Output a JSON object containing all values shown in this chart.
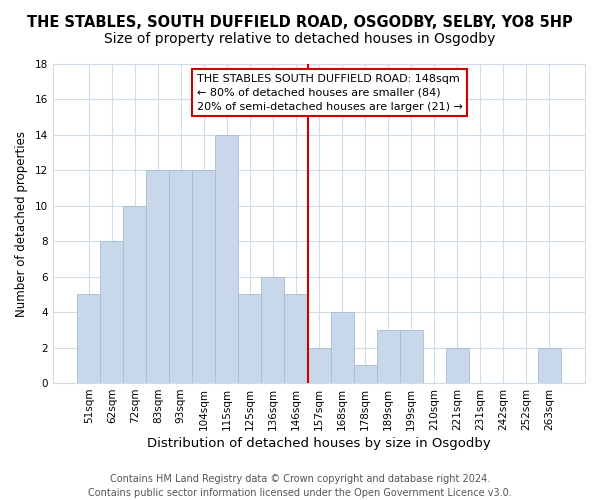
{
  "title": "THE STABLES, SOUTH DUFFIELD ROAD, OSGODBY, SELBY, YO8 5HP",
  "subtitle": "Size of property relative to detached houses in Osgodby",
  "xlabel": "Distribution of detached houses by size in Osgodby",
  "ylabel": "Number of detached properties",
  "bar_labels": [
    "51sqm",
    "62sqm",
    "72sqm",
    "83sqm",
    "93sqm",
    "104sqm",
    "115sqm",
    "125sqm",
    "136sqm",
    "146sqm",
    "157sqm",
    "168sqm",
    "178sqm",
    "189sqm",
    "199sqm",
    "210sqm",
    "221sqm",
    "231sqm",
    "242sqm",
    "252sqm",
    "263sqm"
  ],
  "bar_values": [
    5,
    8,
    10,
    12,
    12,
    12,
    14,
    5,
    6,
    5,
    2,
    4,
    1,
    3,
    3,
    0,
    2,
    0,
    0,
    0,
    2
  ],
  "bar_color": "#c8d8ea",
  "bar_edge_color": "#a8bdd0",
  "vline_color": "#cc0000",
  "annotation_text": "THE STABLES SOUTH DUFFIELD ROAD: 148sqm\n← 80% of detached houses are smaller (84)\n20% of semi-detached houses are larger (21) →",
  "ylim": [
    0,
    18
  ],
  "yticks": [
    0,
    2,
    4,
    6,
    8,
    10,
    12,
    14,
    16,
    18
  ],
  "footer_line1": "Contains HM Land Registry data © Crown copyright and database right 2024.",
  "footer_line2": "Contains public sector information licensed under the Open Government Licence v3.0.",
  "plot_bg_color": "#ffffff",
  "fig_bg_color": "#ffffff",
  "grid_color": "#d0dde8",
  "title_fontsize": 10.5,
  "xlabel_fontsize": 9.5,
  "ylabel_fontsize": 8.5,
  "tick_fontsize": 7.5,
  "annotation_fontsize": 8,
  "footer_fontsize": 7,
  "vline_bar_index": 9
}
